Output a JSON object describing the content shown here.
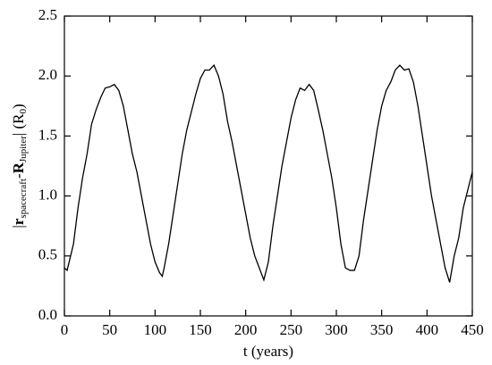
{
  "chart_data": {
    "type": "line",
    "x_label": "t (years)",
    "y_label_parts": [
      "|",
      "r",
      "spacecraft",
      "-",
      "R",
      "Jupiter",
      "|",
      " (R",
      "0",
      ")"
    ],
    "xlim": [
      0,
      450
    ],
    "xticks": [
      0,
      50,
      100,
      150,
      200,
      250,
      300,
      350,
      400,
      450
    ],
    "ylim": [
      0,
      2.5
    ],
    "yticks": [
      {
        "value": 0,
        "label": "0.0"
      },
      0.5,
      {
        "value": 1,
        "label": "1.0"
      },
      1.5,
      {
        "value": 2,
        "label": "2.0"
      },
      2.5
    ],
    "x": [
      0,
      3,
      10,
      15,
      20,
      25,
      30,
      35,
      40,
      45,
      50,
      55,
      60,
      65,
      70,
      75,
      80,
      85,
      90,
      95,
      100,
      105,
      108,
      110,
      115,
      120,
      125,
      130,
      135,
      140,
      145,
      150,
      155,
      160,
      165,
      170,
      175,
      180,
      185,
      190,
      195,
      200,
      205,
      210,
      215,
      220,
      225,
      230,
      235,
      240,
      245,
      250,
      255,
      260,
      265,
      270,
      275,
      280,
      285,
      290,
      295,
      300,
      305,
      310,
      315,
      320,
      325,
      330,
      335,
      340,
      345,
      350,
      355,
      360,
      365,
      370,
      375,
      380,
      385,
      390,
      395,
      400,
      405,
      410,
      415,
      420,
      425,
      430,
      435,
      440,
      445,
      450
    ],
    "series": [
      {
        "color": "#000000",
        "values": [
          0.4,
          0.38,
          0.6,
          0.9,
          1.15,
          1.35,
          1.6,
          1.72,
          1.82,
          1.9,
          1.91,
          1.93,
          1.88,
          1.75,
          1.55,
          1.35,
          1.2,
          1.0,
          0.8,
          0.6,
          0.45,
          0.36,
          0.33,
          0.4,
          0.6,
          0.85,
          1.1,
          1.35,
          1.55,
          1.7,
          1.85,
          1.98,
          2.05,
          2.05,
          2.09,
          2.0,
          1.85,
          1.62,
          1.45,
          1.25,
          1.05,
          0.85,
          0.65,
          0.5,
          0.4,
          0.3,
          0.45,
          0.75,
          1.0,
          1.25,
          1.45,
          1.65,
          1.8,
          1.9,
          1.88,
          1.93,
          1.88,
          1.72,
          1.55,
          1.35,
          1.15,
          0.9,
          0.6,
          0.4,
          0.38,
          0.38,
          0.5,
          0.8,
          1.05,
          1.3,
          1.55,
          1.75,
          1.88,
          1.95,
          2.05,
          2.09,
          2.05,
          2.06,
          1.95,
          1.75,
          1.5,
          1.25,
          1.0,
          0.8,
          0.6,
          0.4,
          0.28,
          0.5,
          0.65,
          0.9,
          1.05,
          1.2
        ]
      }
    ]
  }
}
